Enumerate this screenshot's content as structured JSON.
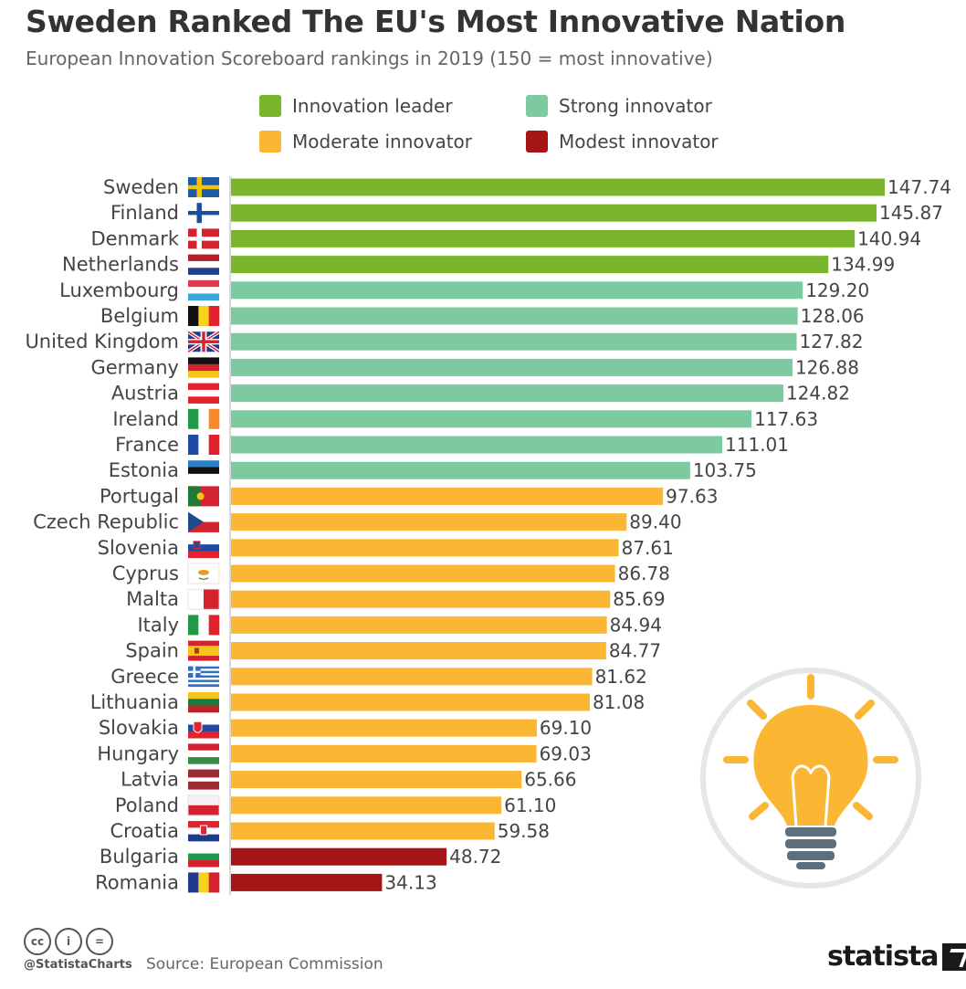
{
  "header": {
    "title": "Sweden Ranked The EU's Most Innovative Nation",
    "subtitle": "European Innovation Scoreboard rankings in 2019 (150 = most innovative)"
  },
  "legend": [
    {
      "label": "Innovation leader",
      "color": "#7ab52e"
    },
    {
      "label": "Strong innovator",
      "color": "#7dcaa0"
    },
    {
      "label": "Moderate innovator",
      "color": "#fbb634"
    },
    {
      "label": "Modest innovator",
      "color": "#a61516"
    }
  ],
  "chart_data": {
    "type": "bar",
    "orientation": "horizontal",
    "title": "Sweden Ranked The EU's Most Innovative Nation",
    "subtitle": "European Innovation Scoreboard rankings in 2019 (150 = most innovative)",
    "xlim": [
      0,
      150
    ],
    "grid": false,
    "legend_position": "top",
    "categories": [
      "Sweden",
      "Finland",
      "Denmark",
      "Netherlands",
      "Luxembourg",
      "Belgium",
      "United Kingdom",
      "Germany",
      "Austria",
      "Ireland",
      "France",
      "Estonia",
      "Portugal",
      "Czech Republic",
      "Slovenia",
      "Cyprus",
      "Malta",
      "Italy",
      "Spain",
      "Greece",
      "Lithuania",
      "Slovakia",
      "Hungary",
      "Latvia",
      "Poland",
      "Croatia",
      "Bulgaria",
      "Romania"
    ],
    "values": [
      147.74,
      145.87,
      140.94,
      134.99,
      129.2,
      128.06,
      127.82,
      126.88,
      124.82,
      117.63,
      111.01,
      103.75,
      97.63,
      89.4,
      87.61,
      86.78,
      85.69,
      84.94,
      84.77,
      81.62,
      81.08,
      69.1,
      69.03,
      65.66,
      61.1,
      59.58,
      48.72,
      34.13
    ],
    "value_labels": [
      "147.74",
      "145.87",
      "140.94",
      "134.99",
      "129.20",
      "128.06",
      "127.82",
      "126.88",
      "124.82",
      "117.63",
      "111.01",
      "103.75",
      "97.63",
      "89.40",
      "87.61",
      "86.78",
      "85.69",
      "84.94",
      "84.77",
      "81.62",
      "81.08",
      "69.10",
      "69.03",
      "65.66",
      "61.10",
      "59.58",
      "48.72",
      "34.13"
    ],
    "groups": [
      "Innovation leader",
      "Innovation leader",
      "Innovation leader",
      "Innovation leader",
      "Strong innovator",
      "Strong innovator",
      "Strong innovator",
      "Strong innovator",
      "Strong innovator",
      "Strong innovator",
      "Strong innovator",
      "Strong innovator",
      "Moderate innovator",
      "Moderate innovator",
      "Moderate innovator",
      "Moderate innovator",
      "Moderate innovator",
      "Moderate innovator",
      "Moderate innovator",
      "Moderate innovator",
      "Moderate innovator",
      "Moderate innovator",
      "Moderate innovator",
      "Moderate innovator",
      "Moderate innovator",
      "Moderate innovator",
      "Modest innovator",
      "Modest innovator"
    ],
    "flag_icons": [
      "flag-sweden-icon",
      "flag-finland-icon",
      "flag-denmark-icon",
      "flag-netherlands-icon",
      "flag-luxembourg-icon",
      "flag-belgium-icon",
      "flag-united-kingdom-icon",
      "flag-germany-icon",
      "flag-austria-icon",
      "flag-ireland-icon",
      "flag-france-icon",
      "flag-estonia-icon",
      "flag-portugal-icon",
      "flag-czech-republic-icon",
      "flag-slovenia-icon",
      "flag-cyprus-icon",
      "flag-malta-icon",
      "flag-italy-icon",
      "flag-spain-icon",
      "flag-greece-icon",
      "flag-lithuania-icon",
      "flag-slovakia-icon",
      "flag-hungary-icon",
      "flag-latvia-icon",
      "flag-poland-icon",
      "flag-croatia-icon",
      "flag-bulgaria-icon",
      "flag-romania-icon"
    ]
  },
  "illustration": {
    "icon": "lightbulb-icon"
  },
  "footer": {
    "license_icons": [
      "cc-icon",
      "attribution-icon",
      "no-derivatives-icon"
    ],
    "license_glyphs": [
      "cc",
      "i",
      "="
    ],
    "handle": "@StatistaCharts",
    "source": "Source: European Commission",
    "brand": "statista"
  }
}
